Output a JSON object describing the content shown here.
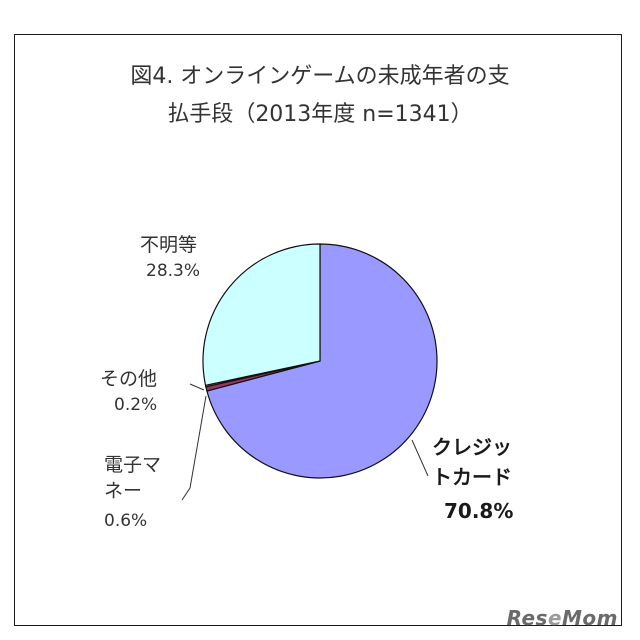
{
  "chart_data": {
    "type": "pie",
    "title_line1": "図4. オンラインゲームの未成年者の支",
    "title_line2": "払手段（2013年度 n=1341）",
    "slices": [
      {
        "name_lines": [
          "クレジッ",
          "トカード"
        ],
        "value": 70.8,
        "label": "70.8%",
        "color": "#9999ff"
      },
      {
        "name_lines": [
          "電子マ",
          "ネー"
        ],
        "value": 0.6,
        "label": "0.6%",
        "color": "#993366"
      },
      {
        "name_lines": [
          "その他"
        ],
        "value": 0.2,
        "label": "0.2%",
        "color": "#ffffcc"
      },
      {
        "name_lines": [
          "不明等"
        ],
        "value": 28.3,
        "label": "28.3%",
        "color": "#ccffff"
      }
    ],
    "start": "12 o'clock",
    "direction": "clockwise"
  },
  "watermark": "ResеMom"
}
